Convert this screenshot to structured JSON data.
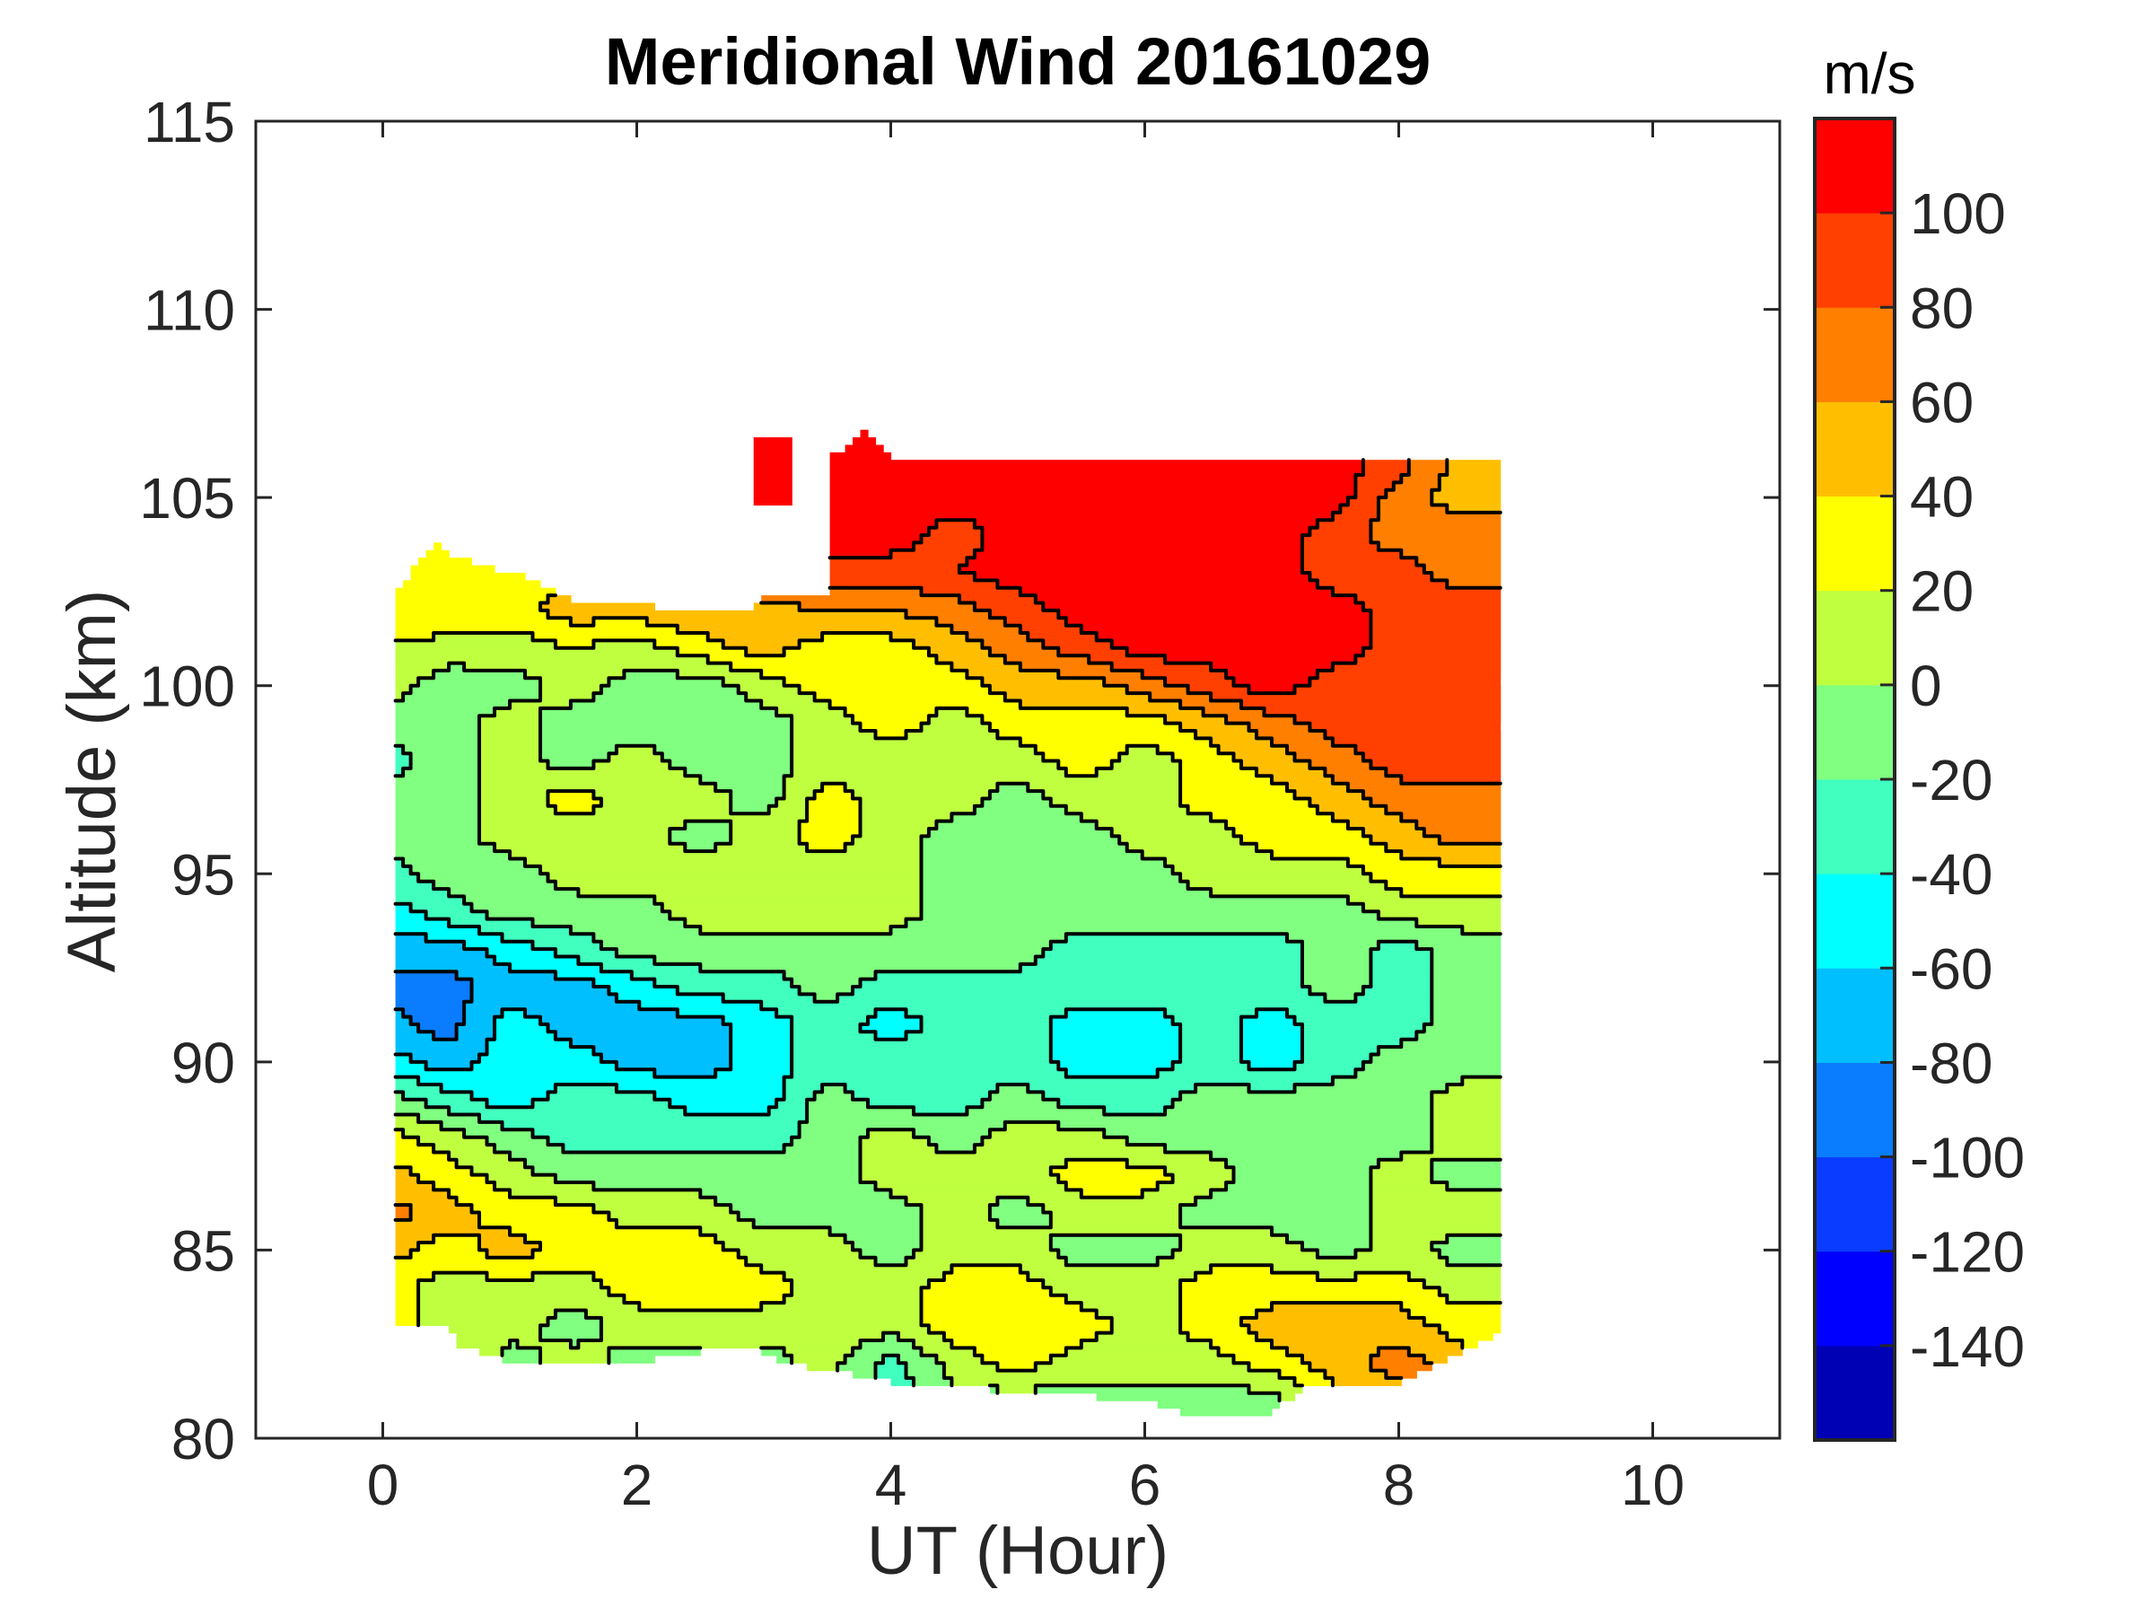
{
  "chart_data": {
    "type": "heatmap",
    "subtype": "filled-contour",
    "title": "Meridional Wind 20161029",
    "xlabel": "UT (Hour)",
    "ylabel": "Altitude (km)",
    "xlim": [
      -1,
      11
    ],
    "ylim": [
      80,
      115
    ],
    "xticks": [
      0,
      2,
      4,
      6,
      8,
      10
    ],
    "xtick_labels": [
      "0",
      "2",
      "4",
      "6",
      "8",
      "10"
    ],
    "yticks": [
      80,
      85,
      90,
      95,
      100,
      105,
      110,
      115
    ],
    "ytick_labels": [
      "80",
      "85",
      "90",
      "95",
      "100",
      "105",
      "110",
      "115"
    ],
    "grid": false,
    "colorbar": {
      "label": "m/s",
      "range": [
        -160,
        120
      ],
      "levels": [
        -160,
        -140,
        -120,
        -100,
        -80,
        -60,
        -40,
        -20,
        0,
        20,
        40,
        60,
        80,
        100,
        120
      ],
      "ticks": [
        100,
        80,
        60,
        40,
        20,
        0,
        -20,
        -40,
        -60,
        -80,
        -100,
        -120,
        -140
      ],
      "tick_labels": [
        "100",
        "80",
        "60",
        "40",
        "20",
        "0",
        "-20",
        "-40",
        "-60",
        "-80",
        "-100",
        "-120",
        "-140"
      ],
      "colors": [
        "#0000b4",
        "#0000ff",
        "#0a3cff",
        "#0a7dff",
        "#00bfff",
        "#00ffff",
        "#40ffbf",
        "#80ff80",
        "#bfff40",
        "#ffff00",
        "#ffbf00",
        "#ff7f00",
        "#ff4000",
        "#ff0000"
      ],
      "placement": "right"
    },
    "grid_x_hours": [
      0,
      0.5,
      1,
      1.5,
      2,
      2.5,
      3,
      3.5,
      4,
      4.5,
      5,
      5.5,
      6,
      6.5,
      7,
      7.5,
      8,
      8.5,
      9
    ],
    "grid_y_km": [
      106,
      105,
      104,
      103,
      102,
      101,
      100,
      99,
      98,
      97,
      96,
      95,
      94,
      93,
      92,
      91,
      90,
      89,
      88,
      87,
      86,
      85,
      84,
      83,
      82,
      81
    ],
    "wind_ms": [
      [
        null,
        null,
        null,
        null,
        null,
        null,
        110,
        110,
        110,
        110,
        110,
        110,
        110,
        110,
        110,
        110,
        90,
        50,
        40
      ],
      [
        null,
        null,
        null,
        null,
        null,
        null,
        110,
        110,
        110,
        110,
        110,
        110,
        110,
        110,
        110,
        110,
        70,
        50,
        50
      ],
      [
        null,
        null,
        null,
        null,
        null,
        null,
        null,
        110,
        110,
        90,
        110,
        110,
        110,
        110,
        110,
        90,
        70,
        70,
        70
      ],
      [
        20,
        40,
        30,
        40,
        null,
        null,
        null,
        90,
        90,
        100,
        110,
        110,
        110,
        110,
        110,
        90,
        90,
        70,
        70
      ],
      [
        30,
        40,
        30,
        50,
        50,
        60,
        50,
        60,
        60,
        70,
        90,
        110,
        110,
        110,
        110,
        110,
        90,
        90,
        90
      ],
      [
        20,
        10,
        10,
        20,
        10,
        30,
        50,
        30,
        30,
        50,
        70,
        90,
        110,
        110,
        110,
        110,
        90,
        90,
        90
      ],
      [
        10,
        -10,
        -10,
        10,
        -10,
        -10,
        10,
        30,
        30,
        30,
        50,
        50,
        70,
        90,
        110,
        90,
        90,
        90,
        90
      ],
      [
        -10,
        -10,
        10,
        -10,
        -10,
        -10,
        -10,
        10,
        30,
        10,
        30,
        30,
        30,
        50,
        70,
        90,
        90,
        90,
        90
      ],
      [
        -30,
        -10,
        10,
        -10,
        10,
        -10,
        -10,
        10,
        10,
        10,
        10,
        30,
        10,
        30,
        50,
        70,
        90,
        90,
        90
      ],
      [
        -10,
        -10,
        10,
        30,
        10,
        10,
        -10,
        30,
        10,
        10,
        -10,
        10,
        10,
        30,
        30,
        50,
        70,
        70,
        70
      ],
      [
        -10,
        -10,
        10,
        10,
        10,
        -10,
        10,
        30,
        10,
        -10,
        -10,
        -10,
        10,
        10,
        30,
        30,
        50,
        70,
        70
      ],
      [
        -30,
        -10,
        -10,
        10,
        10,
        10,
        10,
        10,
        10,
        -10,
        -10,
        -10,
        -10,
        10,
        10,
        10,
        30,
        30,
        30
      ],
      [
        -50,
        -30,
        -10,
        -10,
        -10,
        10,
        10,
        10,
        10,
        -10,
        -10,
        -10,
        -10,
        -10,
        -10,
        -10,
        10,
        10,
        10
      ],
      [
        -70,
        -70,
        -50,
        -30,
        -10,
        -10,
        -10,
        -10,
        -10,
        -10,
        -10,
        -30,
        -30,
        -30,
        -30,
        -10,
        -30,
        -10,
        -10
      ],
      [
        -90,
        -90,
        -70,
        -70,
        -50,
        -30,
        -30,
        -10,
        -30,
        -30,
        -30,
        -30,
        -30,
        -30,
        -30,
        -10,
        -30,
        -10,
        -10
      ],
      [
        -70,
        -90,
        -50,
        -70,
        -70,
        -70,
        -50,
        -30,
        -50,
        -30,
        -30,
        -50,
        -50,
        -30,
        -50,
        -30,
        -30,
        -10,
        -10
      ],
      [
        -50,
        -70,
        -50,
        -50,
        -70,
        -70,
        -50,
        -30,
        -30,
        -30,
        -30,
        -50,
        -50,
        -30,
        -50,
        -30,
        -10,
        -10,
        -10
      ],
      [
        -10,
        -30,
        -50,
        -30,
        -30,
        -50,
        -50,
        -10,
        -30,
        -30,
        -10,
        -30,
        -30,
        -10,
        -10,
        -10,
        -10,
        10,
        10
      ],
      [
        30,
        10,
        -10,
        -30,
        -30,
        -30,
        -30,
        -10,
        10,
        -10,
        10,
        10,
        -10,
        -10,
        -10,
        -10,
        -10,
        10,
        10
      ],
      [
        50,
        30,
        10,
        -10,
        -10,
        -10,
        -10,
        -10,
        10,
        10,
        10,
        30,
        30,
        10,
        -10,
        -10,
        10,
        -10,
        -10
      ],
      [
        70,
        50,
        30,
        30,
        10,
        10,
        -10,
        -10,
        -10,
        10,
        -10,
        10,
        10,
        -10,
        -10,
        -10,
        10,
        10,
        10
      ],
      [
        50,
        30,
        50,
        30,
        30,
        30,
        10,
        10,
        -10,
        10,
        10,
        -10,
        -10,
        10,
        10,
        -10,
        10,
        -10,
        -10
      ],
      [
        30,
        10,
        10,
        10,
        30,
        30,
        30,
        10,
        10,
        30,
        30,
        10,
        10,
        30,
        30,
        30,
        30,
        10,
        10
      ],
      [
        30,
        10,
        10,
        -10,
        10,
        10,
        10,
        10,
        10,
        30,
        30,
        30,
        10,
        30,
        50,
        50,
        50,
        30,
        30
      ],
      [
        null,
        null,
        -10,
        10,
        -10,
        -10,
        -10,
        10,
        -30,
        10,
        30,
        10,
        10,
        10,
        30,
        50,
        70,
        50,
        null
      ],
      [
        null,
        null,
        null,
        null,
        null,
        null,
        null,
        null,
        -30,
        -10,
        -10,
        -10,
        -10,
        -10,
        -10,
        null,
        null,
        null,
        null
      ]
    ],
    "data_extent": {
      "t_start": 0.1,
      "t_end": 8.8,
      "top_km_by_hour": [
        [
          0.1,
          102.5
        ],
        [
          0.4,
          103.8
        ],
        [
          0.5,
          103.5
        ],
        [
          1.2,
          102.8
        ],
        [
          1.5,
          102.3
        ],
        [
          2.5,
          102.0
        ],
        [
          2.9,
          102.0
        ],
        [
          3.0,
          102.3
        ],
        [
          3.5,
          102.5
        ],
        [
          3.5,
          106.0
        ],
        [
          3.8,
          106.8
        ],
        [
          4.0,
          106.0
        ],
        [
          8.8,
          106.0
        ]
      ],
      "bottom_km_by_hour": [
        [
          0.1,
          83.0
        ],
        [
          0.5,
          83.0
        ],
        [
          0.6,
          82.5
        ],
        [
          1.0,
          82.0
        ],
        [
          2.0,
          82.0
        ],
        [
          2.8,
          82.5
        ],
        [
          3.2,
          82.0
        ],
        [
          4.0,
          81.5
        ],
        [
          6.0,
          81.0
        ],
        [
          6.5,
          80.5
        ],
        [
          7.0,
          80.7
        ],
        [
          7.3,
          81.5
        ],
        [
          8.0,
          81.5
        ],
        [
          8.8,
          82.8
        ]
      ],
      "island": {
        "t": [
          2.9,
          3.2
        ],
        "km": [
          104.8,
          106.5
        ]
      }
    }
  }
}
